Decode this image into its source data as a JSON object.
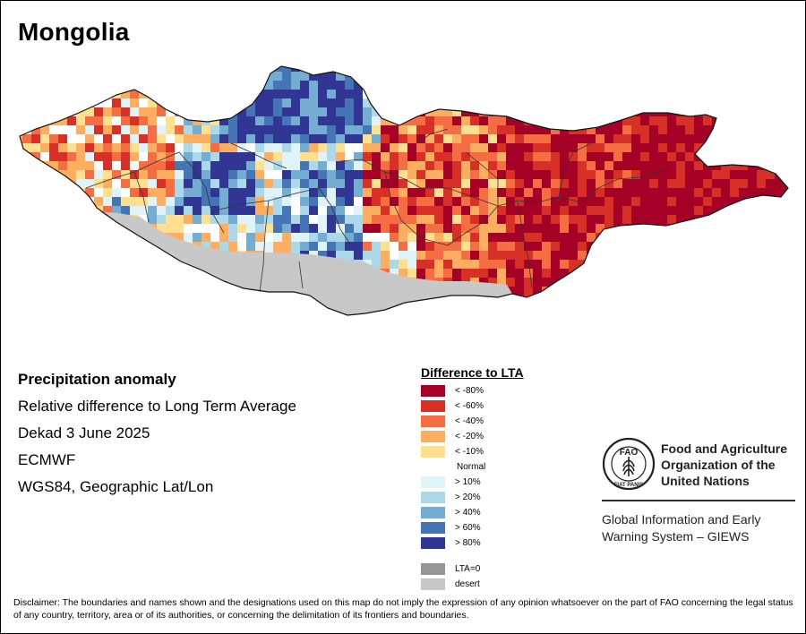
{
  "title": "Mongolia",
  "info": {
    "heading": "Precipitation anomaly",
    "lines": [
      "Relative difference to Long Term Average",
      "Dekad 3 June 2025",
      "ECMWF",
      "WGS84, Geographic Lat/Lon"
    ]
  },
  "legend": {
    "title": "Difference to LTA",
    "items": [
      {
        "label": "< -80%",
        "color": "#a50026"
      },
      {
        "label": "< -60%",
        "color": "#d73027"
      },
      {
        "label": "< -40%",
        "color": "#f46d43"
      },
      {
        "label": "< -20%",
        "color": "#fdae61"
      },
      {
        "label": "< -10%",
        "color": "#fee090"
      },
      {
        "label": "Normal",
        "color": "#ffffff"
      },
      {
        "label": "> 10%",
        "color": "#e0f3f8"
      },
      {
        "label": "> 20%",
        "color": "#abd9e9"
      },
      {
        "label": "> 40%",
        "color": "#74add1"
      },
      {
        "label": "> 60%",
        "color": "#4575b4"
      },
      {
        "label": "> 80%",
        "color": "#313695"
      }
    ],
    "extra": [
      {
        "label": "LTA=0",
        "color": "#969696"
      },
      {
        "label": "desert",
        "color": "#c8c8c8"
      }
    ]
  },
  "org": {
    "name_lines": [
      "Food and Agriculture",
      "Organization of the",
      "United Nations"
    ],
    "logo_letters": "FAO",
    "logo_motto": "FIAT PANIS",
    "program_lines": [
      "Global Information and Early",
      "Warning System – GIEWS"
    ]
  },
  "disclaimer": "Disclaimer: The boundaries and names shown and the designations used on this map do not imply the expression of any opinion whatsoever on the part of FAO concerning the legal status of any country, territory, area or of its authorities, or concerning the delimitation of its frontiers and boundaries."
}
